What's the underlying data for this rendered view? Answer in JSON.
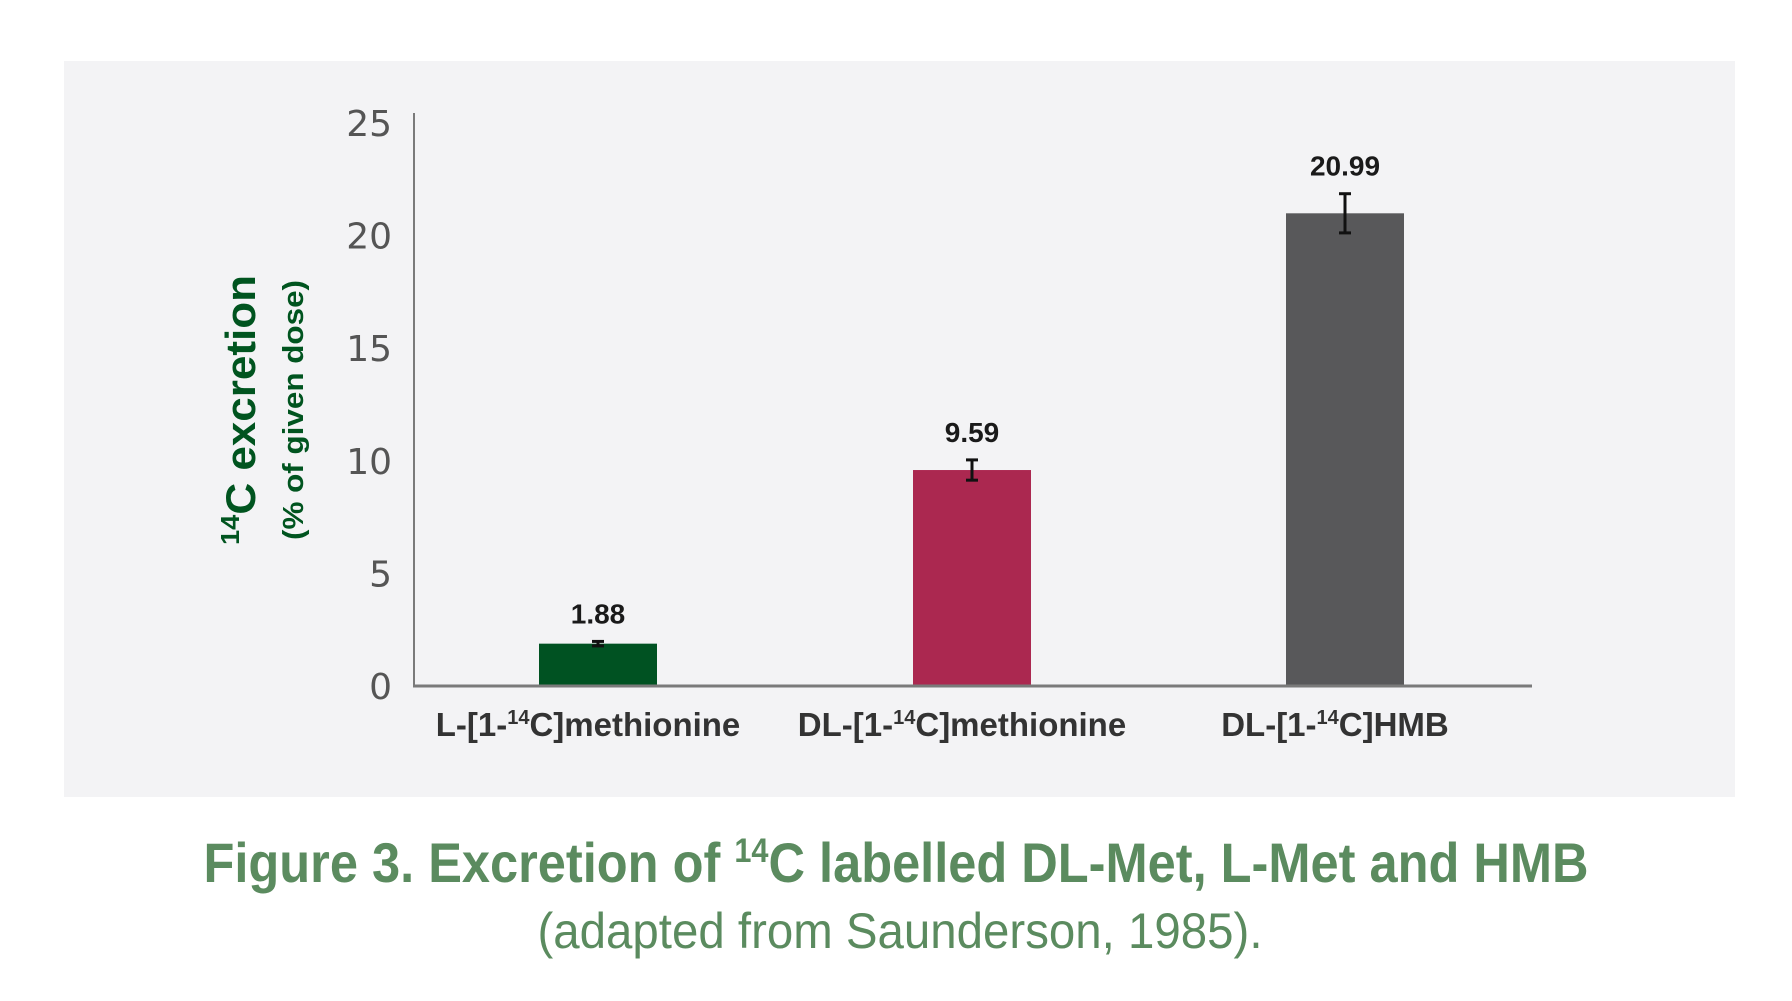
{
  "chart_data": {
    "type": "bar",
    "title": "Figure 3. Excretion of 14C labelled DL-Met, L-Met and HMB",
    "title_parts": {
      "prefix": "Figure 3. Excretion of ",
      "sup": "14",
      "suffix": "C labelled DL-Met, L-Met and HMB"
    },
    "subtitle": "(adapted from Saunderson, 1985).",
    "ylabel": "14C excretion",
    "ylabel_parts": {
      "sup": "14",
      "main": "C excretion"
    },
    "ylabel_sub": "(% of given dose)",
    "xlabel": "",
    "ylim": [
      0,
      25
    ],
    "yticks": [
      "0",
      "5",
      "10",
      "15",
      "20",
      "25"
    ],
    "grid": false,
    "categories": [
      "L-[1-14C]methionine",
      "DL-[1-14C]methionine",
      "DL-[1-14C]HMB"
    ],
    "category_parts": [
      {
        "pre": "L-[1-",
        "sup": "14",
        "post": "C]methionine"
      },
      {
        "pre": "DL-[1-",
        "sup": "14",
        "post": "C]methionine"
      },
      {
        "pre": "DL-[1-",
        "sup": "14",
        "post": "C]HMB"
      }
    ],
    "values": [
      1.88,
      9.59,
      20.99
    ],
    "data_labels": [
      "1.88",
      "9.59",
      "20.99"
    ],
    "error": [
      0.1,
      0.45,
      0.87
    ],
    "colors": [
      "#005222",
      "#ab2850",
      "#58585a"
    ]
  },
  "colors": {
    "panel": "#f3f3f5",
    "caption": "#5b8b5f",
    "ylabel": "#00541f",
    "axis": "#7a7a7a"
  }
}
